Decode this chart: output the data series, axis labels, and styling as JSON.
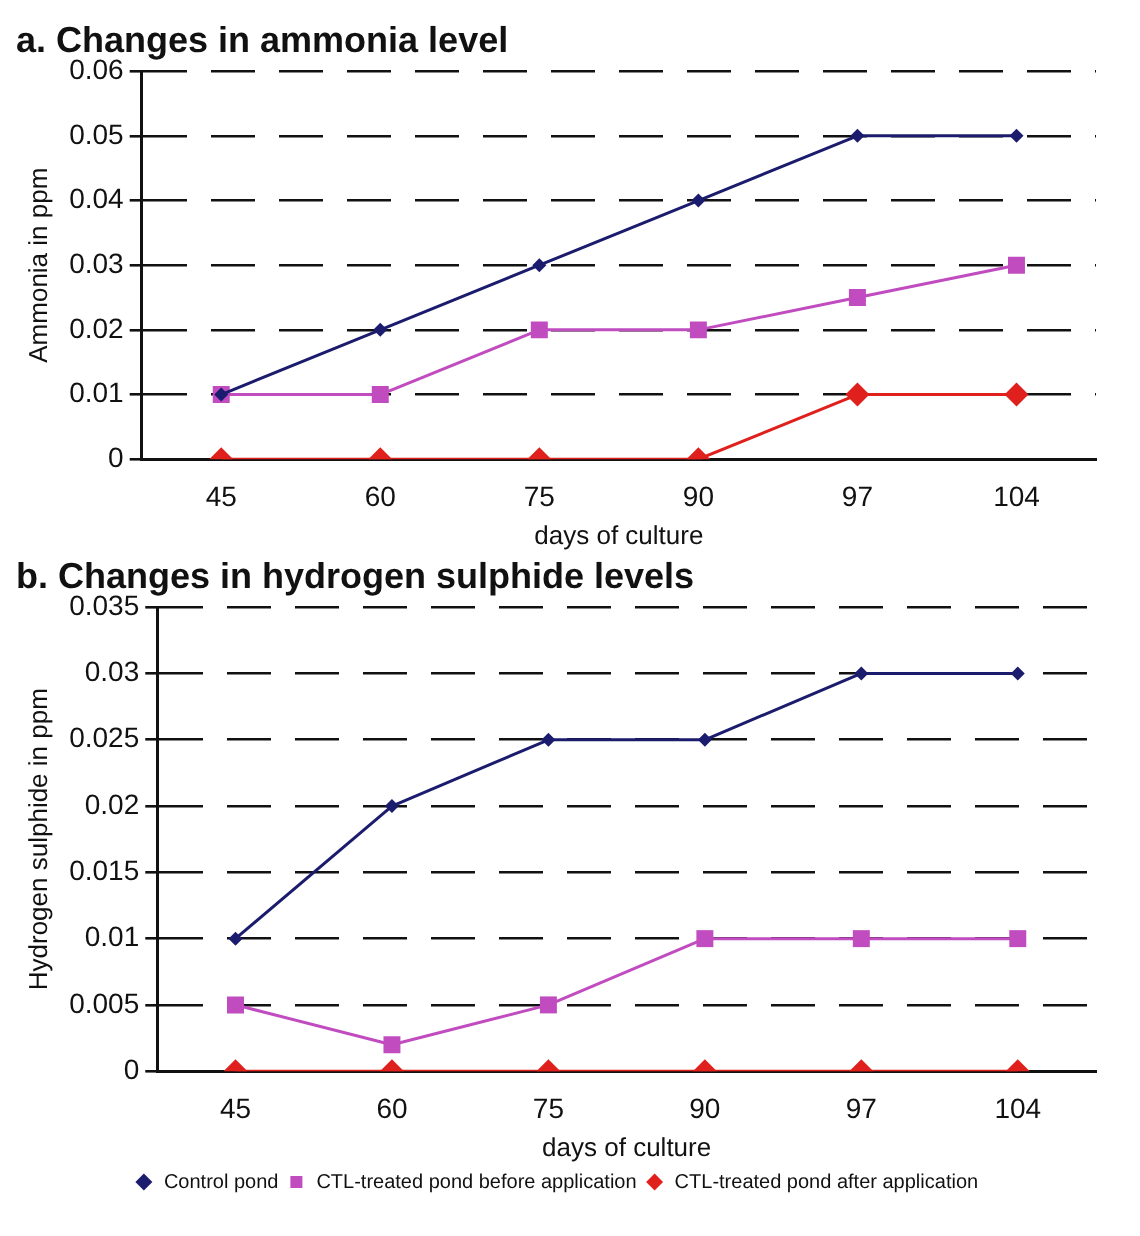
{
  "chart_data": [
    {
      "type": "line",
      "title": "a. Changes in ammonia level",
      "xlabel": "days of culture",
      "ylabel": "Ammonia in ppm",
      "categories": [
        "45",
        "60",
        "75",
        "90",
        "97",
        "104"
      ],
      "series": [
        {
          "color": "#1c1c6e",
          "marker": "diamond",
          "values": [
            0.01,
            0.02,
            0.03,
            0.04,
            0.05,
            0.05
          ]
        },
        {
          "color": "#c04cc0",
          "marker": "square",
          "values": [
            0.01,
            0.01,
            0.02,
            0.02,
            0.025,
            0.03
          ]
        },
        {
          "color": "#e0201c",
          "marker": "diamond",
          "values": [
            0,
            0,
            0,
            0,
            0.01,
            0.01
          ]
        }
      ],
      "ylim": [
        0,
        0.06
      ],
      "yticks": [
        {
          "value": 0,
          "label": "0"
        },
        0.01,
        0.02,
        0.03,
        0.04,
        0.05,
        0.06
      ],
      "grid": "y",
      "line_style": "solid",
      "legend": false
    },
    {
      "type": "line",
      "title": "b. Changes in hydrogen sulphide levels",
      "xlabel": "days of culture",
      "ylabel": "Hydrogen sulphide in ppm",
      "categories": [
        "45",
        "60",
        "75",
        "90",
        "97",
        "104"
      ],
      "series": [
        {
          "name": "Control pond",
          "color": "#1c1c6e",
          "marker": "diamond",
          "values": [
            0.01,
            0.02,
            0.025,
            0.025,
            0.03,
            0.03
          ]
        },
        {
          "name": "CTL-treated pond before application",
          "color": "#c04cc0",
          "marker": "square",
          "values": [
            0.005,
            0.002,
            0.005,
            0.01,
            0.01,
            0.01
          ]
        },
        {
          "name": "CTL-treated pond after application",
          "color": "#e0201c",
          "marker": "diamond",
          "values": [
            0,
            0,
            0,
            0,
            0,
            0
          ]
        }
      ],
      "ylim": [
        0,
        0.035
      ],
      "yticks": [
        {
          "value": 0,
          "label": "0"
        },
        0.005,
        0.01,
        0.015,
        0.02,
        0.025,
        0.03,
        0.035
      ],
      "grid": "y",
      "line_style": "solid",
      "legend": "bottom"
    }
  ]
}
